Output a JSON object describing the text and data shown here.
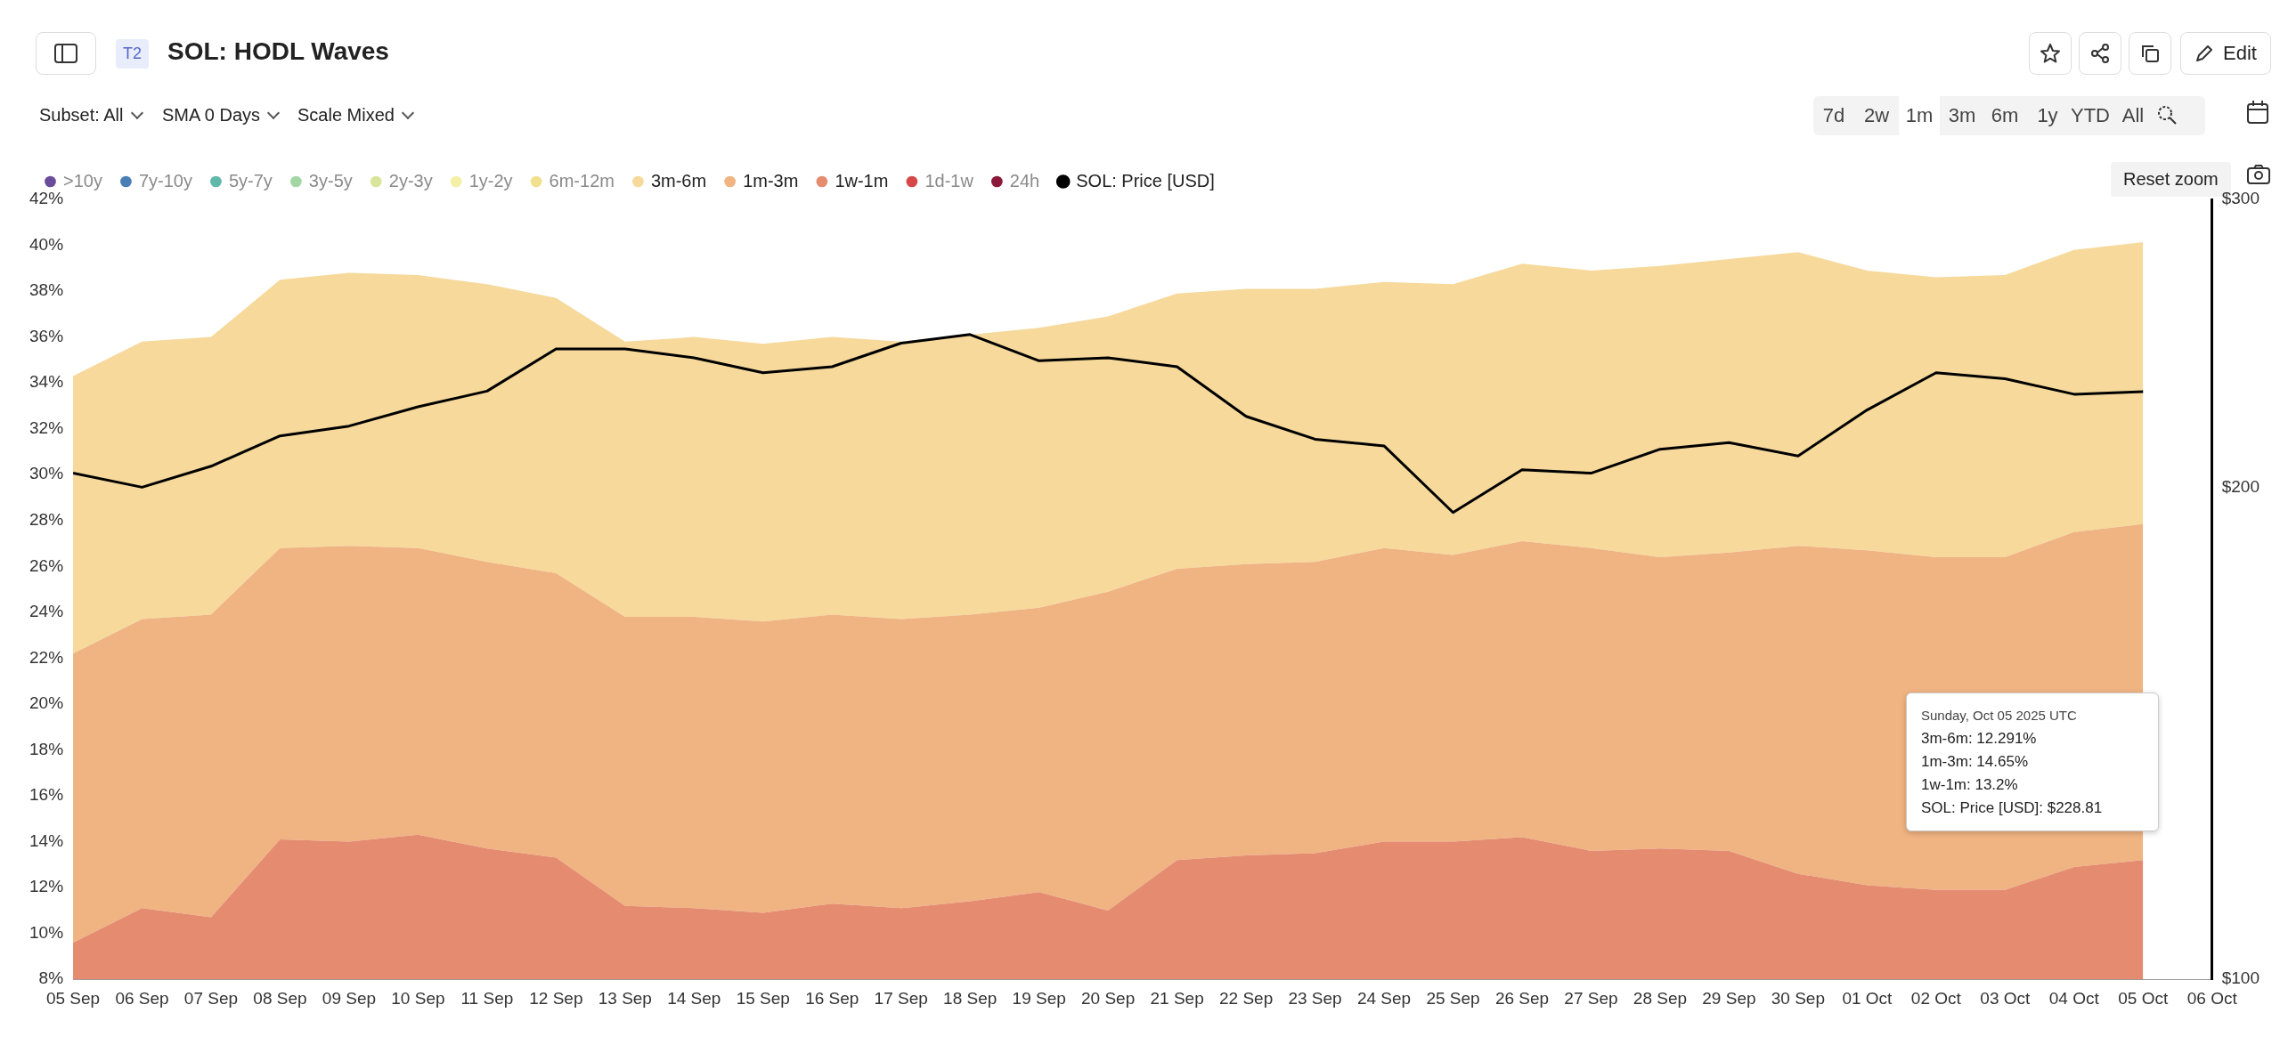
{
  "chart_data": {
    "type": "area",
    "title": "SOL: HODL Waves",
    "x": [
      "2025-09-05",
      "2025-09-06",
      "2025-09-07",
      "2025-09-08",
      "2025-09-09",
      "2025-09-10",
      "2025-09-11",
      "2025-09-12",
      "2025-09-13",
      "2025-09-14",
      "2025-09-15",
      "2025-09-16",
      "2025-09-17",
      "2025-09-18",
      "2025-09-19",
      "2025-09-20",
      "2025-09-21",
      "2025-09-22",
      "2025-09-23",
      "2025-09-24",
      "2025-09-25",
      "2025-09-26",
      "2025-09-27",
      "2025-09-28",
      "2025-09-29",
      "2025-09-30",
      "2025-10-01",
      "2025-10-02",
      "2025-10-03",
      "2025-10-04",
      "2025-10-05"
    ],
    "stacked": true,
    "series": [
      {
        "name": "SOL: Price [USD]",
        "type": "line",
        "axis": "y2",
        "color": "#000000",
        "values": [
          204,
          200,
          206,
          215,
          218,
          224,
          229,
          243,
          243,
          240,
          235,
          237,
          245,
          248,
          239,
          240,
          237,
          221,
          214,
          212,
          193,
          205,
          204,
          211,
          213,
          209,
          223,
          235,
          233,
          228,
          228.81
        ]
      },
      {
        "name": "24h",
        "color": "#8b1a3a",
        "values": [
          null,
          null,
          null,
          null,
          null,
          null,
          null,
          null,
          null,
          null,
          null,
          null,
          null,
          null,
          null,
          null,
          null,
          null,
          null,
          null,
          null,
          null,
          null,
          null,
          null,
          null,
          null,
          null,
          null,
          null,
          null
        ]
      },
      {
        "name": "1d-1w",
        "color": "#d64848",
        "values": [
          null,
          null,
          null,
          null,
          null,
          null,
          null,
          null,
          null,
          null,
          null,
          null,
          null,
          null,
          null,
          null,
          null,
          null,
          null,
          null,
          null,
          null,
          null,
          null,
          null,
          null,
          null,
          null,
          null,
          null,
          null
        ]
      },
      {
        "name": "1w-1m",
        "color": "#e48b70",
        "values": [
          9.6,
          11.1,
          10.7,
          14.1,
          14.0,
          14.3,
          13.7,
          13.3,
          11.2,
          11.1,
          10.9,
          11.3,
          11.1,
          11.4,
          11.8,
          11.0,
          13.2,
          13.4,
          13.5,
          14.0,
          14.0,
          14.2,
          13.6,
          13.7,
          13.6,
          12.6,
          12.1,
          11.9,
          11.9,
          12.9,
          13.2
        ]
      },
      {
        "name": "1m-3m",
        "color": "#f0b382",
        "values": [
          12.6,
          12.6,
          13.2,
          12.7,
          12.9,
          12.5,
          12.5,
          12.4,
          12.6,
          12.7,
          12.7,
          12.6,
          12.6,
          12.5,
          12.4,
          13.9,
          12.7,
          12.7,
          12.7,
          12.8,
          12.5,
          12.9,
          13.2,
          12.7,
          13.0,
          14.3,
          14.6,
          14.5,
          14.5,
          14.6,
          14.65
        ]
      },
      {
        "name": "3m-6m",
        "color": "#f6d99b",
        "values": [
          12.1,
          12.1,
          12.1,
          11.7,
          11.9,
          11.9,
          12.1,
          12.0,
          12.0,
          12.2,
          12.1,
          12.1,
          12.1,
          12.2,
          12.2,
          12.0,
          12.0,
          12.0,
          11.9,
          11.6,
          11.8,
          12.1,
          12.1,
          12.7,
          12.8,
          12.8,
          12.2,
          12.2,
          12.3,
          12.3,
          12.291
        ]
      },
      {
        "name": "6m-12m",
        "color": "#f3e08e",
        "values": [
          null,
          null,
          null,
          null,
          null,
          null,
          null,
          null,
          null,
          null,
          null,
          null,
          null,
          null,
          null,
          null,
          null,
          null,
          null,
          null,
          null,
          null,
          null,
          null,
          null,
          null,
          null,
          null,
          null,
          null,
          null
        ]
      },
      {
        "name": "1y-2y",
        "color": "#f4f1a6",
        "values": [
          null,
          null,
          null,
          null,
          null,
          null,
          null,
          null,
          null,
          null,
          null,
          null,
          null,
          null,
          null,
          null,
          null,
          null,
          null,
          null,
          null,
          null,
          null,
          null,
          null,
          null,
          null,
          null,
          null,
          null,
          null
        ]
      },
      {
        "name": "2y-3y",
        "color": "#d9e59b",
        "values": [
          null,
          null,
          null,
          null,
          null,
          null,
          null,
          null,
          null,
          null,
          null,
          null,
          null,
          null,
          null,
          null,
          null,
          null,
          null,
          null,
          null,
          null,
          null,
          null,
          null,
          null,
          null,
          null,
          null,
          null,
          null
        ]
      },
      {
        "name": "3y-5y",
        "color": "#a3d6a4",
        "values": [
          null,
          null,
          null,
          null,
          null,
          null,
          null,
          null,
          null,
          null,
          null,
          null,
          null,
          null,
          null,
          null,
          null,
          null,
          null,
          null,
          null,
          null,
          null,
          null,
          null,
          null,
          null,
          null,
          null,
          null,
          null
        ]
      },
      {
        "name": "5y-7y",
        "color": "#5fb8a8",
        "values": [
          null,
          null,
          null,
          null,
          null,
          null,
          null,
          null,
          null,
          null,
          null,
          null,
          null,
          null,
          null,
          null,
          null,
          null,
          null,
          null,
          null,
          null,
          null,
          null,
          null,
          null,
          null,
          null,
          null,
          null,
          null
        ]
      },
      {
        "name": "7y-10y",
        "color": "#4a7fb5",
        "values": [
          null,
          null,
          null,
          null,
          null,
          null,
          null,
          null,
          null,
          null,
          null,
          null,
          null,
          null,
          null,
          null,
          null,
          null,
          null,
          null,
          null,
          null,
          null,
          null,
          null,
          null,
          null,
          null,
          null,
          null,
          null
        ]
      },
      {
        "name": ">10y",
        "color": "#6b4c9a",
        "values": [
          null,
          null,
          null,
          null,
          null,
          null,
          null,
          null,
          null,
          null,
          null,
          null,
          null,
          null,
          null,
          null,
          null,
          null,
          null,
          null,
          null,
          null,
          null,
          null,
          null,
          null,
          null,
          null,
          null,
          null,
          null
        ]
      }
    ],
    "xlim": [
      "2025-09-05",
      "2025-10-06"
    ],
    "xticks": [
      {
        "value": "2025-09-05",
        "label": "05 Sep"
      },
      {
        "value": "2025-09-06",
        "label": "06 Sep"
      },
      {
        "value": "2025-09-07",
        "label": "07 Sep"
      },
      {
        "value": "2025-09-08",
        "label": "08 Sep"
      },
      {
        "value": "2025-09-09",
        "label": "09 Sep"
      },
      {
        "value": "2025-09-10",
        "label": "10 Sep"
      },
      {
        "value": "2025-09-11",
        "label": "11 Sep"
      },
      {
        "value": "2025-09-12",
        "label": "12 Sep"
      },
      {
        "value": "2025-09-13",
        "label": "13 Sep"
      },
      {
        "value": "2025-09-14",
        "label": "14 Sep"
      },
      {
        "value": "2025-09-15",
        "label": "15 Sep"
      },
      {
        "value": "2025-09-16",
        "label": "16 Sep"
      },
      {
        "value": "2025-09-17",
        "label": "17 Sep"
      },
      {
        "value": "2025-09-18",
        "label": "18 Sep"
      },
      {
        "value": "2025-09-19",
        "label": "19 Sep"
      },
      {
        "value": "2025-09-20",
        "label": "20 Sep"
      },
      {
        "value": "2025-09-21",
        "label": "21 Sep"
      },
      {
        "value": "2025-09-22",
        "label": "22 Sep"
      },
      {
        "value": "2025-09-23",
        "label": "23 Sep"
      },
      {
        "value": "2025-09-24",
        "label": "24 Sep"
      },
      {
        "value": "2025-09-25",
        "label": "25 Sep"
      },
      {
        "value": "2025-09-26",
        "label": "26 Sep"
      },
      {
        "value": "2025-09-27",
        "label": "27 Sep"
      },
      {
        "value": "2025-09-28",
        "label": "28 Sep"
      },
      {
        "value": "2025-09-29",
        "label": "29 Sep"
      },
      {
        "value": "2025-09-30",
        "label": "30 Sep"
      },
      {
        "value": "2025-10-01",
        "label": "01 Oct"
      },
      {
        "value": "2025-10-02",
        "label": "02 Oct"
      },
      {
        "value": "2025-10-03",
        "label": "03 Oct"
      },
      {
        "value": "2025-10-04",
        "label": "04 Oct"
      },
      {
        "value": "2025-10-05",
        "label": "05 Oct"
      },
      {
        "value": "2025-10-06",
        "label": "06 Oct"
      }
    ],
    "ylim": [
      8,
      42
    ],
    "yticks": [
      {
        "value": 8,
        "label": "8%"
      },
      {
        "value": 10,
        "label": "10%"
      },
      {
        "value": 12,
        "label": "12%"
      },
      {
        "value": 14,
        "label": "14%"
      },
      {
        "value": 16,
        "label": "16%"
      },
      {
        "value": 18,
        "label": "18%"
      },
      {
        "value": 20,
        "label": "20%"
      },
      {
        "value": 22,
        "label": "22%"
      },
      {
        "value": 24,
        "label": "24%"
      },
      {
        "value": 26,
        "label": "26%"
      },
      {
        "value": 28,
        "label": "28%"
      },
      {
        "value": 30,
        "label": "30%"
      },
      {
        "value": 32,
        "label": "32%"
      },
      {
        "value": 34,
        "label": "34%"
      },
      {
        "value": 36,
        "label": "36%"
      },
      {
        "value": 38,
        "label": "38%"
      },
      {
        "value": 40,
        "label": "40%"
      },
      {
        "value": 42,
        "label": "42%"
      }
    ],
    "y2lim": [
      100,
      300
    ],
    "y2ticks": [
      {
        "value": 100,
        "label": "$100"
      },
      {
        "value": 200,
        "label": "$200"
      },
      {
        "value": 300,
        "label": "$300"
      }
    ],
    "log": "y2",
    "legend": "top left",
    "annotations": [
      "T2",
      "Subset: All",
      "SMA 0 Days",
      "Scale Mixed",
      "7d",
      "2w",
      "1m",
      "3m",
      "6m",
      "1y",
      "YTD",
      "All",
      "Edit",
      "Reset zoom",
      "Sunday, Oct 05 2025 UTC",
      "3m-6m: 12.291%",
      "1m-3m: 14.65%",
      "1w-1m: 13.2%",
      "SOL: Price [USD]: $228.81"
    ]
  }
}
